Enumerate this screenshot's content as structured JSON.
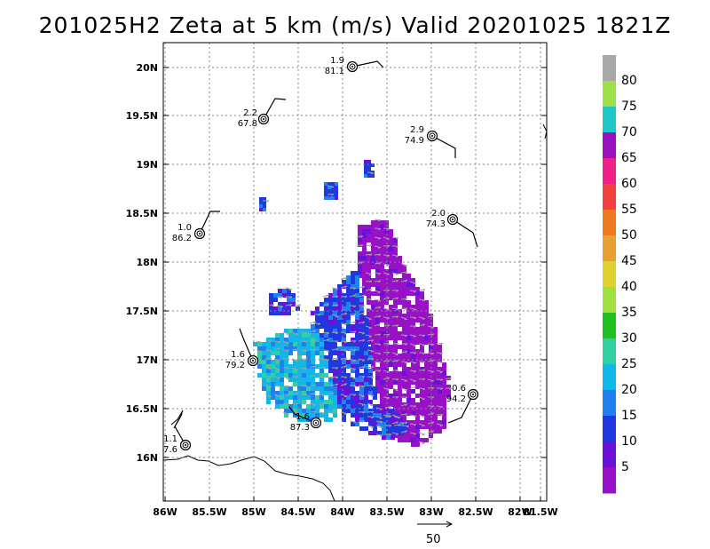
{
  "title": "201025H2 Zeta at 5 km (m/s) Valid 20201025  1821Z",
  "map": {
    "lon_ticks": [
      "86W",
      "85.5W",
      "85W",
      "84.5W",
      "84W",
      "83.5W",
      "83W",
      "82.5W",
      "82W",
      "81.5W"
    ],
    "lat_ticks": [
      "20N",
      "19.5N",
      "19N",
      "18.5N",
      "18N",
      "17.5N",
      "17N",
      "16.5N",
      "16N"
    ],
    "grid": true
  },
  "colorbar": {
    "labels": [
      "80",
      "75",
      "70",
      "65",
      "60",
      "55",
      "50",
      "45",
      "40",
      "35",
      "30",
      "25",
      "20",
      "15",
      "10",
      "5"
    ],
    "colors": [
      "#a8a8a8",
      "#9ee04a",
      "#1ec8c8",
      "#9810c0",
      "#f02088",
      "#f04040",
      "#f07820",
      "#e8a030",
      "#e0d030",
      "#a0e040",
      "#20c020",
      "#30d0a0",
      "#10b8e8",
      "#2080f0",
      "#2038e0",
      "#6a10d8",
      "#9810c8"
    ]
  },
  "stations": [
    {
      "top": "1.9",
      "bottom": "81.1"
    },
    {
      "top": "2.2",
      "bottom": "67.8"
    },
    {
      "top": "2.9",
      "bottom": "74.9"
    },
    {
      "top": "1.0",
      "bottom": "86.2"
    },
    {
      "top": "2.0",
      "bottom": "74.3"
    },
    {
      "top": "1.6",
      "bottom": "79.2"
    },
    {
      "top": "0.6",
      "bottom": "94.2"
    },
    {
      "top": "1.6",
      "bottom": "87.3"
    },
    {
      "top": "1.1",
      "bottom": "7.6"
    }
  ],
  "vector_scale": {
    "label": "50"
  }
}
